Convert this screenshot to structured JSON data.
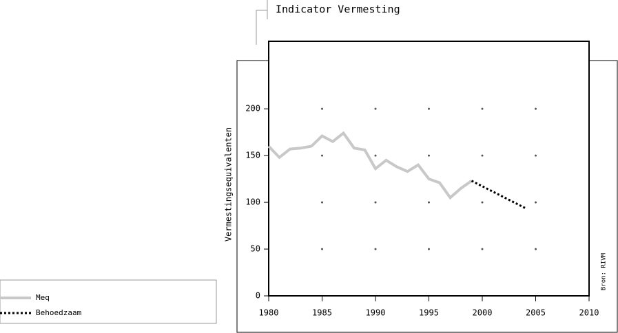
{
  "chart_data": {
    "type": "line",
    "title": "Indicator Vermesting",
    "ylabel": "Vermestingsequivalenten",
    "source": "Bron: RIVM",
    "xlim": [
      1980,
      2010
    ],
    "xticks": [
      1980,
      1985,
      1990,
      1995,
      2000,
      2005,
      2010
    ],
    "ylim": [
      0,
      270
    ],
    "yticks": [
      0,
      50,
      100,
      150,
      200
    ],
    "grid": true,
    "series": [
      {
        "name": "Meq",
        "color": "#c8c8c8",
        "x": [
          1980,
          1981,
          1982,
          1983,
          1984,
          1985,
          1986,
          1987,
          1988,
          1989,
          1990,
          1991,
          1992,
          1993,
          1994,
          1995,
          1996,
          1997,
          1998,
          1999
        ],
        "values": [
          160,
          148,
          157,
          158,
          160,
          171,
          165,
          174,
          158,
          156,
          136,
          145,
          138,
          133,
          140,
          125,
          121,
          105,
          115,
          123
        ]
      },
      {
        "name": "Behoedzaam",
        "color": "#000000",
        "dashed": true,
        "x": [
          1999,
          2004
        ],
        "values": [
          123,
          94
        ]
      }
    ]
  }
}
